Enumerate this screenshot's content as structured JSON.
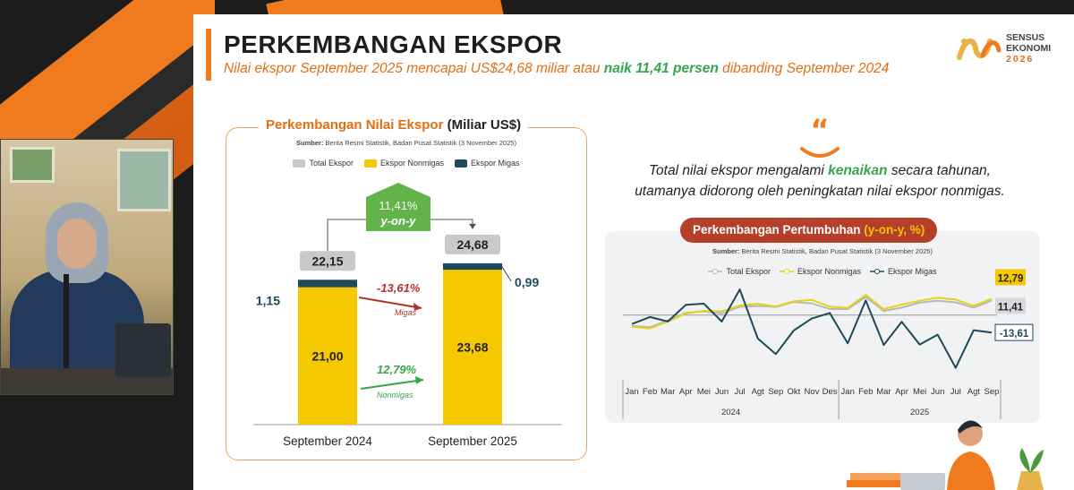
{
  "slide": {
    "title": "PERKEMBANGAN EKSPOR",
    "subtitle_pre": "Nilai ekspor September 2025 mencapai US$24,68 miliar atau ",
    "subtitle_hl": "naik 11,41 persen",
    "subtitle_post": " dibanding September 2024",
    "logo_line1": "SENSUS",
    "logo_line2": "EKONOMI",
    "logo_year": "2026"
  },
  "left_panel": {
    "title_orange": "Perkembangan Nilai Ekspor ",
    "title_black": "(Miliar US$)",
    "source_bold": "Sumber:",
    "source_rest": " Berita Resmi Statistik, Badan Pusat Statistik (3 November 2025)",
    "legend": [
      {
        "label": "Total Ekspor",
        "color": "#c9c9c9"
      },
      {
        "label": "Ekspor Nonmigas",
        "color": "#f5c800"
      },
      {
        "label": "Ekspor Migas",
        "color": "#1d4a5a"
      }
    ]
  },
  "quote": {
    "line1_pre": "Total nilai ekspor mengalami ",
    "line1_hl": "kenaikan",
    "line1_post": " secara tahunan,",
    "line2": "utamanya didorong oleh peningkatan nilai ekspor nonmigas."
  },
  "right_panel": {
    "title_main": "Perkembangan Pertumbuhan ",
    "title_hl": "(y-on-y, %)",
    "source_bold": "Sumber:",
    "source_rest": " Berita Resmi Statistik, Badan Pusat Statistik (3 November 2025)",
    "legend": [
      {
        "label": "Total Ekspor",
        "color": "#b8b8b8"
      },
      {
        "label": "Ekspor Nonmigas",
        "color": "#e8d21a"
      },
      {
        "label": "Ekspor Migas",
        "color": "#1d4a5a"
      }
    ]
  },
  "chart_data": [
    {
      "type": "bar",
      "title": "Perkembangan Nilai Ekspor (Miliar US$)",
      "categories": [
        "September 2024",
        "September 2025"
      ],
      "series": [
        {
          "name": "Ekspor Nonmigas",
          "values": [
            21.0,
            23.68
          ],
          "labels": [
            "21,00",
            "23,68"
          ],
          "color": "#f5c800"
        },
        {
          "name": "Ekspor Migas",
          "values": [
            1.15,
            0.99
          ],
          "labels": [
            "1,15",
            "0,99"
          ],
          "color": "#1d4a5a"
        },
        {
          "name": "Total Ekspor",
          "values": [
            22.15,
            24.68
          ],
          "labels": [
            "22,15",
            "24,68"
          ],
          "color": "#c9c9c9"
        }
      ],
      "annotations": {
        "growth_total": "11,41%",
        "growth_total_sub": "y-on-y",
        "growth_migas": "-13,61%",
        "growth_migas_label": "Migas",
        "growth_nonmigas": "12,79%",
        "growth_nonmigas_label": "Nonmigas"
      },
      "ylim": [
        0,
        26
      ]
    },
    {
      "type": "line",
      "title": "Perkembangan Pertumbuhan (y-on-y, %)",
      "x": [
        "Jan",
        "Feb",
        "Mar",
        "Apr",
        "Mei",
        "Jun",
        "Jul",
        "Agt",
        "Sep",
        "Okt",
        "Nov",
        "Des",
        "Jan",
        "Feb",
        "Mar",
        "Apr",
        "Mei",
        "Jun",
        "Jul",
        "Agt",
        "Sep"
      ],
      "x_groups": [
        {
          "label": "2024",
          "from": 0,
          "to": 11
        },
        {
          "label": "2025",
          "from": 12,
          "to": 20
        }
      ],
      "series": [
        {
          "name": "Total Ekspor",
          "color": "#b8b8b8",
          "values": [
            -8.5,
            -9.5,
            -4.2,
            1.7,
            2.9,
            1.2,
            6.5,
            7.1,
            6.4,
            10.3,
            9.1,
            4.8,
            4.7,
            14.1,
            3.2,
            5.8,
            9.7,
            11.3,
            9.9,
            5.8,
            11.41
          ]
        },
        {
          "name": "Ekspor Nonmigas",
          "color": "#e8d21a",
          "values": [
            -9.0,
            -10.5,
            -5.0,
            1.1,
            3.3,
            2.9,
            7.5,
            8.8,
            6.7,
            10.8,
            11.9,
            6.6,
            5.6,
            15.8,
            4.6,
            8.2,
            11.2,
            13.6,
            12.1,
            7.2,
            12.79
          ]
        },
        {
          "name": "Ekspor Migas",
          "color": "#1d4a5a",
          "values": [
            -7.0,
            -1.5,
            -5.0,
            8.0,
            8.9,
            -5.0,
            20.0,
            -18.3,
            -30.5,
            -12.0,
            -2.7,
            1.6,
            -22.1,
            11.4,
            -23.4,
            -5.3,
            -23.0,
            -15.3,
            -41.2,
            -11.8,
            -13.61
          ]
        }
      ],
      "end_labels": [
        "11,41",
        "12,79",
        "-13,61"
      ],
      "ylim": [
        -45,
        25
      ]
    }
  ]
}
